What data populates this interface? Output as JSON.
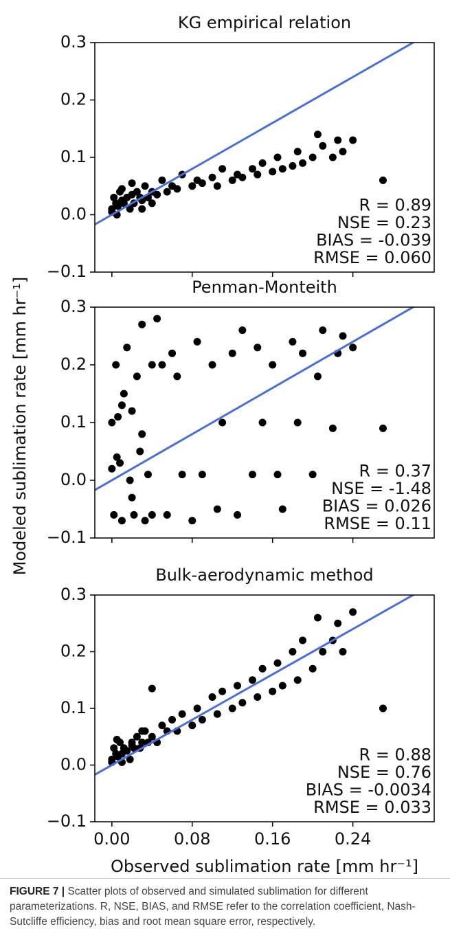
{
  "figure": {
    "xlabel": "Observed sublimation rate [mm hr⁻¹]",
    "ylabel": "Modeled sublimation rate [mm hr⁻¹]"
  },
  "chart_data": [
    {
      "type": "scatter",
      "title": "KG empirical relation",
      "x": [
        0.0,
        0.002,
        0.004,
        0.006,
        0.008,
        0.01,
        0.012,
        0.015,
        0.018,
        0.02,
        0.022,
        0.025,
        0.028,
        0.03,
        0.033,
        0.036,
        0.04,
        0.045,
        0.05,
        0.055,
        0.06,
        0.065,
        0.07,
        0.08,
        0.085,
        0.09,
        0.1,
        0.105,
        0.11,
        0.12,
        0.125,
        0.13,
        0.14,
        0.145,
        0.15,
        0.16,
        0.165,
        0.17,
        0.18,
        0.185,
        0.19,
        0.2,
        0.205,
        0.21,
        0.22,
        0.225,
        0.23,
        0.24,
        0.27,
        0.0,
        0.005,
        0.01,
        0.02,
        0.03,
        0.04
      ],
      "y": [
        0.01,
        0.03,
        0.02,
        0.015,
        0.04,
        0.025,
        0.02,
        0.03,
        0.01,
        0.035,
        0.02,
        0.04,
        0.03,
        0.025,
        0.05,
        0.03,
        0.04,
        0.035,
        0.06,
        0.04,
        0.05,
        0.045,
        0.07,
        0.05,
        0.06,
        0.055,
        0.065,
        0.05,
        0.08,
        0.06,
        0.07,
        0.065,
        0.08,
        0.07,
        0.09,
        0.075,
        0.1,
        0.08,
        0.085,
        0.11,
        0.09,
        0.1,
        0.14,
        0.12,
        0.1,
        0.13,
        0.11,
        0.13,
        0.06,
        0.005,
        0.0,
        0.045,
        0.055,
        0.01,
        0.02
      ],
      "color": "#000000",
      "identity_line": true,
      "identity_color": "#4a6fd6",
      "xlim": [
        -0.017,
        0.321
      ],
      "ylim": [
        -0.1,
        0.3
      ],
      "xticks": [
        0,
        0.08,
        0.16,
        0.24
      ],
      "yticks": [
        {
          "value": -0.1,
          "label": "−0.1"
        },
        {
          "value": 0,
          "label": "0.0"
        },
        0.1,
        0.2,
        0.3
      ],
      "annotations": [
        "R = 0.89",
        "NSE = 0.23",
        "BIAS = -0.039",
        "RMSE = 0.060"
      ]
    },
    {
      "type": "scatter",
      "title": "Penman-Monteith",
      "x": [
        0.0,
        0.002,
        0.004,
        0.006,
        0.008,
        0.01,
        0.012,
        0.015,
        0.018,
        0.02,
        0.022,
        0.025,
        0.028,
        0.03,
        0.033,
        0.036,
        0.04,
        0.045,
        0.05,
        0.055,
        0.06,
        0.065,
        0.07,
        0.08,
        0.085,
        0.09,
        0.1,
        0.105,
        0.11,
        0.12,
        0.125,
        0.13,
        0.14,
        0.145,
        0.15,
        0.16,
        0.165,
        0.17,
        0.18,
        0.185,
        0.19,
        0.2,
        0.205,
        0.21,
        0.22,
        0.225,
        0.23,
        0.24,
        0.27,
        0.0,
        0.005,
        0.01,
        0.02,
        0.03,
        0.04
      ],
      "y": [
        0.02,
        -0.06,
        0.2,
        0.11,
        0.03,
        -0.07,
        0.15,
        0.23,
        0.0,
        0.12,
        -0.06,
        0.18,
        0.05,
        0.27,
        -0.07,
        0.01,
        -0.06,
        0.28,
        0.2,
        -0.06,
        0.22,
        0.18,
        0.01,
        -0.07,
        0.24,
        0.01,
        0.2,
        -0.05,
        0.1,
        0.22,
        -0.06,
        0.26,
        0.01,
        0.23,
        0.1,
        0.2,
        0.01,
        -0.05,
        0.24,
        0.1,
        0.22,
        0.01,
        0.18,
        0.26,
        0.09,
        0.22,
        0.25,
        0.23,
        0.09,
        0.1,
        0.04,
        0.13,
        -0.03,
        0.08,
        0.2
      ],
      "color": "#000000",
      "identity_line": true,
      "identity_color": "#4a6fd6",
      "xlim": [
        -0.017,
        0.321
      ],
      "ylim": [
        -0.1,
        0.3
      ],
      "xticks": [
        0,
        0.08,
        0.16,
        0.24
      ],
      "yticks": [
        {
          "value": -0.1,
          "label": "−0.1"
        },
        {
          "value": 0,
          "label": "0.0"
        },
        0.1,
        0.2,
        0.3
      ],
      "annotations": [
        "R = 0.37",
        "NSE = -1.48",
        "BIAS = 0.026",
        "RMSE = 0.11"
      ]
    },
    {
      "type": "scatter",
      "title": "Bulk-aerodynamic method",
      "x": [
        0.0,
        0.002,
        0.004,
        0.006,
        0.008,
        0.01,
        0.012,
        0.015,
        0.018,
        0.02,
        0.022,
        0.025,
        0.028,
        0.03,
        0.033,
        0.036,
        0.04,
        0.045,
        0.05,
        0.055,
        0.06,
        0.065,
        0.07,
        0.08,
        0.085,
        0.09,
        0.1,
        0.105,
        0.11,
        0.12,
        0.125,
        0.13,
        0.14,
        0.145,
        0.15,
        0.16,
        0.165,
        0.17,
        0.18,
        0.185,
        0.19,
        0.2,
        0.205,
        0.21,
        0.22,
        0.225,
        0.23,
        0.24,
        0.27,
        0.0,
        0.005,
        0.01,
        0.02,
        0.03,
        0.04
      ],
      "y": [
        0.01,
        0.03,
        0.02,
        0.015,
        0.04,
        0.02,
        0.03,
        0.025,
        0.01,
        0.04,
        0.03,
        0.05,
        0.03,
        0.04,
        0.06,
        0.04,
        0.05,
        0.04,
        0.07,
        0.06,
        0.08,
        0.06,
        0.09,
        0.07,
        0.1,
        0.08,
        0.12,
        0.09,
        0.13,
        0.1,
        0.14,
        0.11,
        0.15,
        0.12,
        0.17,
        0.13,
        0.18,
        0.14,
        0.2,
        0.15,
        0.22,
        0.17,
        0.26,
        0.2,
        0.22,
        0.25,
        0.2,
        0.27,
        0.1,
        0.005,
        0.045,
        0.005,
        0.035,
        0.06,
        0.135
      ],
      "color": "#000000",
      "identity_line": true,
      "identity_color": "#4a6fd6",
      "xlim": [
        -0.017,
        0.321
      ],
      "ylim": [
        -0.1,
        0.3
      ],
      "xticks": [
        {
          "value": 0,
          "label": "0.00"
        },
        0.08,
        0.16,
        0.24
      ],
      "yticks": [
        {
          "value": -0.1,
          "label": "−0.1"
        },
        {
          "value": 0,
          "label": "0.0"
        },
        0.1,
        0.2,
        0.3
      ],
      "annotations": [
        "R = 0.88",
        "NSE = 0.76",
        "BIAS = -0.0034",
        "RMSE = 0.033"
      ]
    }
  ],
  "caption": {
    "label": "FIGURE 7 |",
    "text": "Scatter plots of observed and simulated sublimation for different parameterizations. R, NSE, BIAS, and RMSE refer to the correlation coefficient, Nash-Sutcliffe efficiency, bias and root mean square error, respectively."
  }
}
